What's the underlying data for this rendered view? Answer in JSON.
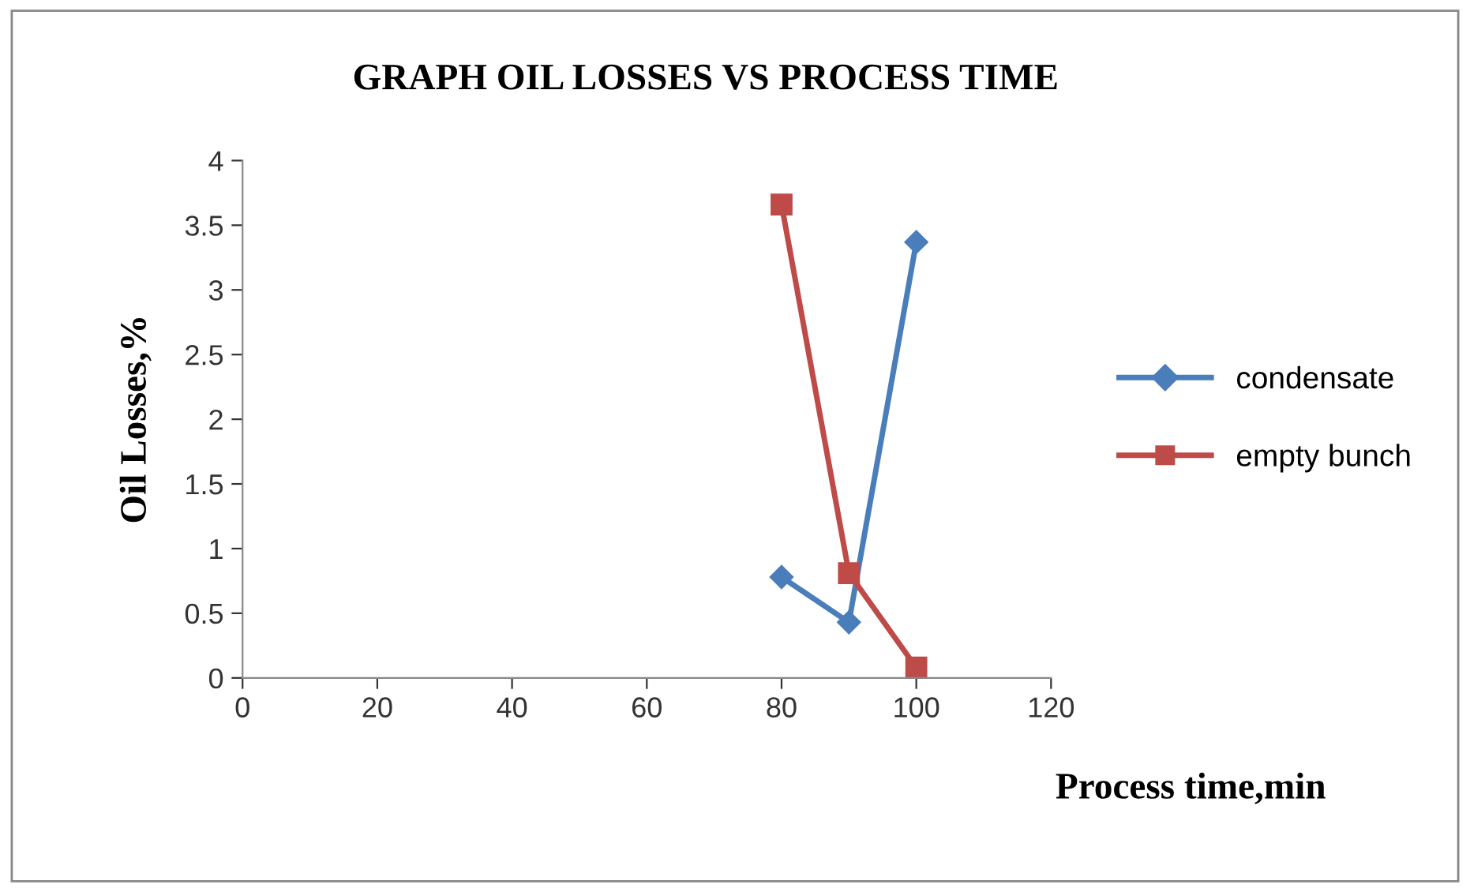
{
  "chart_data": {
    "type": "line",
    "title": "GRAPH OIL LOSSES VS PROCESS TIME",
    "xlabel": "Process time,min",
    "ylabel": "Oil Losses,%",
    "x": [
      80,
      90,
      100
    ],
    "series": [
      {
        "name": "condensate",
        "color": "#4a7ebb",
        "marker": "diamond",
        "values": [
          0.78,
          0.43,
          3.37
        ]
      },
      {
        "name": "empty bunch",
        "color": "#be4b48",
        "marker": "square",
        "values": [
          3.66,
          0.81,
          0.08
        ]
      }
    ],
    "xlim": [
      0,
      120
    ],
    "xticks": [
      0,
      20,
      40,
      60,
      80,
      100,
      120
    ],
    "ylim": [
      0,
      4
    ],
    "yticks": [
      0,
      0.5,
      1,
      1.5,
      2,
      2.5,
      3,
      3.5,
      4
    ],
    "grid": false,
    "legend": "right",
    "line_style": "solid"
  }
}
